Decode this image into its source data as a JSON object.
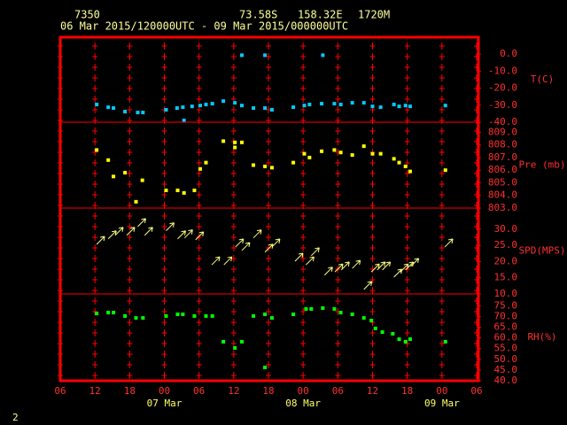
{
  "header": {
    "station": "7350",
    "lat": "73.58S",
    "lon": "158.32E",
    "elev": "1720M",
    "period": "06 Mar 2015/120000UTC - 09 Mar 2015/000000UTC"
  },
  "page_number": "2",
  "chart_data": [
    {
      "type": "scatter",
      "ylabel": "T(C)",
      "color": "#00ccff",
      "xlim": [
        0,
        72
      ],
      "ylim": [
        -40,
        10
      ],
      "yticks": [
        {
          "value": 0,
          "label": "0.0"
        },
        {
          "value": -10,
          "label": "-10.0"
        },
        {
          "value": -20,
          "label": "-20.0"
        },
        {
          "value": -30,
          "label": "-30.0"
        },
        {
          "value": -40,
          "label": "-40.0"
        }
      ],
      "x": [
        6.3,
        8.3,
        9.2,
        11.2,
        13.4,
        14.3,
        18.3,
        20.2,
        21.2,
        21.4,
        22.8,
        24.2,
        25.2,
        26.3,
        28.2,
        30.2,
        31.4,
        31.4,
        33.4,
        35.4,
        35.4,
        36.6,
        40.3,
        42.2,
        43.1,
        45.2,
        45.4,
        47.4,
        48.5,
        50.5,
        52.5,
        54,
        55.4,
        57.7,
        58.6,
        59.7,
        60.5,
        66.6
      ],
      "values": [
        -29.6,
        -31.2,
        -31.7,
        -33.8,
        -34.3,
        -34.3,
        -32.7,
        -31.7,
        -31.2,
        -39,
        -30.7,
        -30.2,
        -29.6,
        -29.1,
        -27.6,
        -28.6,
        -0.6,
        -30.2,
        -31.7,
        -0.6,
        -31.7,
        -32.7,
        -31.2,
        -30.2,
        -29.6,
        -29.1,
        -0.6,
        -29.1,
        -29.6,
        -28.6,
        -28.6,
        -30.7,
        -31.2,
        -29.6,
        -30.7,
        -30.2,
        -30.7,
        -30.2
      ]
    },
    {
      "type": "scatter",
      "ylabel": "Pre (mb)",
      "color": "#ffff00",
      "xlim": [
        0,
        72
      ],
      "ylim": [
        803,
        809.8
      ],
      "yticks": [
        {
          "value": 809,
          "label": "809.0"
        },
        {
          "value": 808,
          "label": "808.0"
        },
        {
          "value": 807,
          "label": "807.0"
        },
        {
          "value": 806,
          "label": "806.0"
        },
        {
          "value": 805,
          "label": "805.0"
        },
        {
          "value": 804,
          "label": "804.0"
        },
        {
          "value": 803,
          "label": "803.0"
        }
      ],
      "x": [
        6.3,
        8.3,
        9.2,
        11.2,
        13.1,
        14.2,
        18.3,
        20.3,
        21.4,
        23.2,
        24.2,
        25.2,
        28.2,
        30.2,
        30.2,
        31.4,
        33.4,
        35.4,
        36.6,
        40.3,
        42.2,
        43.1,
        45.2,
        47.4,
        48.5,
        50.5,
        52.5,
        54,
        55.4,
        57.7,
        58.6,
        59.7,
        60.5,
        66.6
      ],
      "values": [
        807.6,
        806.8,
        805.5,
        805.8,
        803.5,
        805.2,
        804.4,
        804.4,
        804.2,
        804.4,
        806.1,
        806.6,
        808.3,
        808.2,
        807.8,
        808.2,
        806.4,
        806.3,
        806.2,
        806.6,
        807.3,
        807,
        807.5,
        807.6,
        807.4,
        807.2,
        807.9,
        807.3,
        807.3,
        806.9,
        806.6,
        806.3,
        805.9,
        806
      ]
    },
    {
      "type": "wind",
      "ylabel": "SPD(MPS)",
      "color": "#ffff80",
      "xlim": [
        0,
        72
      ],
      "ylim": [
        10,
        36.5
      ],
      "yticks": [
        {
          "value": 30,
          "label": "30.0"
        },
        {
          "value": 25,
          "label": "25.0"
        },
        {
          "value": 20,
          "label": "20.0"
        },
        {
          "value": 15,
          "label": "15.0"
        },
        {
          "value": 10,
          "label": "10.0"
        }
      ],
      "x": [
        6.3,
        8.3,
        9.5,
        11.5,
        13.4,
        14.6,
        18.3,
        20.3,
        21.5,
        23.4,
        26.2,
        28.3,
        30.3,
        31.4,
        33.4,
        35.4,
        36.6,
        40.6,
        42.5,
        43.4,
        45.7,
        47.5,
        48.6,
        50.5,
        52.5,
        53.8,
        54.8,
        55.7,
        57.7,
        58.8,
        59.7,
        60.6,
        66.5
      ],
      "values": [
        25.3,
        27,
        28.1,
        28.1,
        30.8,
        28.1,
        29.5,
        27,
        27.3,
        26.7,
        19,
        19,
        24.5,
        23.4,
        27.3,
        22.9,
        24.5,
        20.1,
        19,
        21.8,
        15.8,
        16.8,
        17.4,
        17.9,
        11.4,
        16.8,
        17.4,
        17.4,
        15.2,
        16.8,
        17.4,
        18.5,
        24.5
      ]
    },
    {
      "type": "scatter",
      "ylabel": "RH(%)",
      "color": "#00ff00",
      "xlim": [
        0,
        72
      ],
      "ylim": [
        40,
        80.5
      ],
      "yticks": [
        {
          "value": 75,
          "label": "75.0"
        },
        {
          "value": 70,
          "label": "70.0"
        },
        {
          "value": 65,
          "label": "65.0"
        },
        {
          "value": 60,
          "label": "60.0"
        },
        {
          "value": 55,
          "label": "55.0"
        },
        {
          "value": 50,
          "label": "50.0"
        },
        {
          "value": 45,
          "label": "45.0"
        },
        {
          "value": 40,
          "label": "40.0"
        }
      ],
      "x": [
        6.3,
        8.3,
        9.2,
        11.2,
        13.1,
        14.3,
        18.3,
        20.3,
        21.2,
        23.2,
        25.2,
        26.3,
        28.2,
        30.2,
        31.4,
        33.4,
        35.4,
        35.4,
        36.6,
        40.3,
        42.5,
        43.4,
        45.4,
        47.4,
        48.5,
        50.5,
        52.5,
        53.8,
        54.5,
        55.7,
        57.5,
        58.6,
        59.7,
        60.5,
        66.6
      ],
      "values": [
        71.4,
        71.8,
        71.8,
        70.2,
        69.3,
        69.3,
        70.2,
        71,
        71,
        70.2,
        70.2,
        70.2,
        58.2,
        55.3,
        58.2,
        70.2,
        71,
        46.2,
        69.3,
        71,
        73.5,
        73.5,
        73.9,
        73.5,
        71.8,
        71,
        69.3,
        68.1,
        64.4,
        62.7,
        61.9,
        59.4,
        58.2,
        59.4,
        58.2
      ],
      "xticks": [
        {
          "value": 0,
          "label": "06"
        },
        {
          "value": 6,
          "label": "12"
        },
        {
          "value": 12,
          "label": "18"
        },
        {
          "value": 18,
          "label": "00"
        },
        {
          "value": 24,
          "label": "06"
        },
        {
          "value": 30,
          "label": "12"
        },
        {
          "value": 36,
          "label": "18"
        },
        {
          "value": 42,
          "label": "00"
        },
        {
          "value": 48,
          "label": "06"
        },
        {
          "value": 54,
          "label": "12"
        },
        {
          "value": 60,
          "label": "18"
        },
        {
          "value": 66,
          "label": "00"
        },
        {
          "value": 72,
          "label": "06"
        }
      ],
      "date_labels": [
        {
          "value": 18,
          "label": "07 Mar"
        },
        {
          "value": 42,
          "label": "08 Mar"
        },
        {
          "value": 66,
          "label": "09 Mar"
        }
      ]
    }
  ]
}
